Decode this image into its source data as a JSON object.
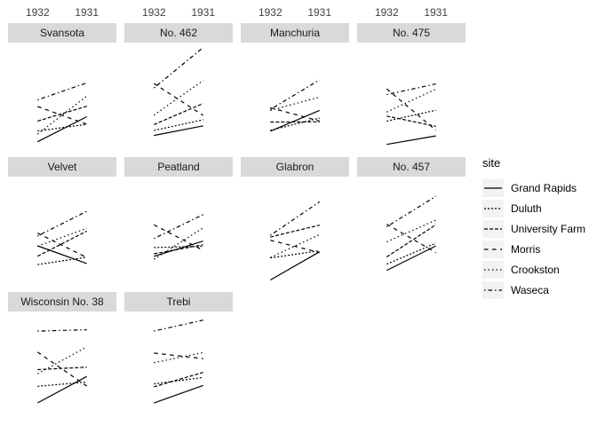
{
  "figure": {
    "background": "#ffffff",
    "line_color": "#000000",
    "strip_bg": "#d9d9d9",
    "strip_text_color": "#1a1a1a",
    "axis_text_color": "#404040",
    "legend_key_bg": "#f2f2f2"
  },
  "legend": {
    "title": "site",
    "entries": [
      {
        "label": "Grand Rapids",
        "dash": ""
      },
      {
        "label": "Duluth",
        "dash": "2,2"
      },
      {
        "label": "University Farm",
        "dash": "4,2"
      },
      {
        "label": "Morris",
        "dash": "4.5,4.5"
      },
      {
        "label": "Crookston",
        "dash": "1.5,3"
      },
      {
        "label": "Waseca",
        "dash": "1.5,3,4.5,3"
      }
    ]
  },
  "chart_data": {
    "type": "line",
    "title": "",
    "xlabel": "",
    "ylabel": "",
    "x_tick_labels": [
      "1932",
      "1931"
    ],
    "x_axis_position": "top",
    "grid": false,
    "legend_position": "right",
    "ylim": [
      11.87,
      68.33
    ],
    "sites": [
      "Grand Rapids",
      "Duluth",
      "University Farm",
      "Morris",
      "Crookston",
      "Waseca"
    ],
    "facets": [
      {
        "title": "Svansota",
        "values": [
          [
            16.63,
            29.67
          ],
          [
            22.23,
            25.7
          ],
          [
            27.43,
            35.13
          ],
          [
            35.03,
            25.77
          ],
          [
            20.63,
            40.47
          ],
          [
            38.5,
            47.33
          ]
        ]
      },
      {
        "title": "No. 462",
        "values": [
          [
            19.9,
            24.93
          ],
          [
            22.5,
            28.1
          ],
          [
            25.57,
            36.6
          ],
          [
            47.0,
            30.37
          ],
          [
            30.53,
            48.57
          ],
          [
            44.7,
            65.77
          ]
        ]
      },
      {
        "title": "Manchuria",
        "values": [
          [
            22.13,
            32.97
          ],
          [
            22.57,
            28.97
          ],
          [
            26.9,
            27.0
          ],
          [
            34.37,
            27.43
          ],
          [
            32.97,
            39.93
          ],
          [
            33.47,
            48.87
          ]
        ]
      },
      {
        "title": "No. 475",
        "values": [
          [
            15.23,
            19.7
          ],
          [
            27.37,
            33.07
          ],
          [
            30.0,
            24.67
          ],
          [
            44.23,
            22.6
          ],
          [
            32.13,
            44.1
          ],
          [
            41.27,
            46.77
          ]
        ]
      },
      {
        "title": "Velvet",
        "values": [
          [
            32.23,
            23.03
          ],
          [
            22.47,
            26.3
          ],
          [
            26.8,
            39.9
          ],
          [
            38.83,
            26.13
          ],
          [
            32.07,
            41.33
          ],
          [
            37.4,
            50.23
          ]
        ]
      },
      {
        "title": "Peatland",
        "values": [
          [
            26.77,
            34.7
          ],
          [
            31.37,
            32.0
          ],
          [
            28.07,
            32.77
          ],
          [
            43.2,
            29.87
          ],
          [
            25.23,
            41.6
          ],
          [
            36.03,
            48.57
          ]
        ]
      },
      {
        "title": "Glabron",
        "values": [
          [
            14.43,
            29.13
          ],
          [
            25.87,
            29.67
          ],
          [
            36.8,
            43.07
          ],
          [
            35.13,
            28.77
          ],
          [
            26.17,
            38.13
          ],
          [
            37.73,
            55.2
          ]
        ]
      },
      {
        "title": "No. 457",
        "values": [
          [
            19.47,
            32.17
          ],
          [
            22.7,
            33.6
          ],
          [
            26.43,
            43.27
          ],
          [
            43.53,
            28.7
          ],
          [
            34.33,
            45.67
          ],
          [
            42.2,
            58.1
          ]
        ]
      },
      {
        "title": "Wisconsin No. 38",
        "values": [
          [
            20.67,
            34.47
          ],
          [
            29.33,
            31.6
          ],
          [
            38.0,
            39.3
          ],
          [
            47.17,
            29.47
          ],
          [
            35.9,
            49.87
          ],
          [
            58.1,
            58.8
          ]
        ]
      },
      {
        "title": "Trebi",
        "values": [
          [
            20.63,
            29.77
          ],
          [
            30.6,
            33.93
          ],
          [
            29.07,
            36.57
          ],
          [
            46.63,
            43.77
          ],
          [
            41.63,
            46.93
          ],
          [
            58.17,
            63.83
          ]
        ]
      }
    ]
  }
}
